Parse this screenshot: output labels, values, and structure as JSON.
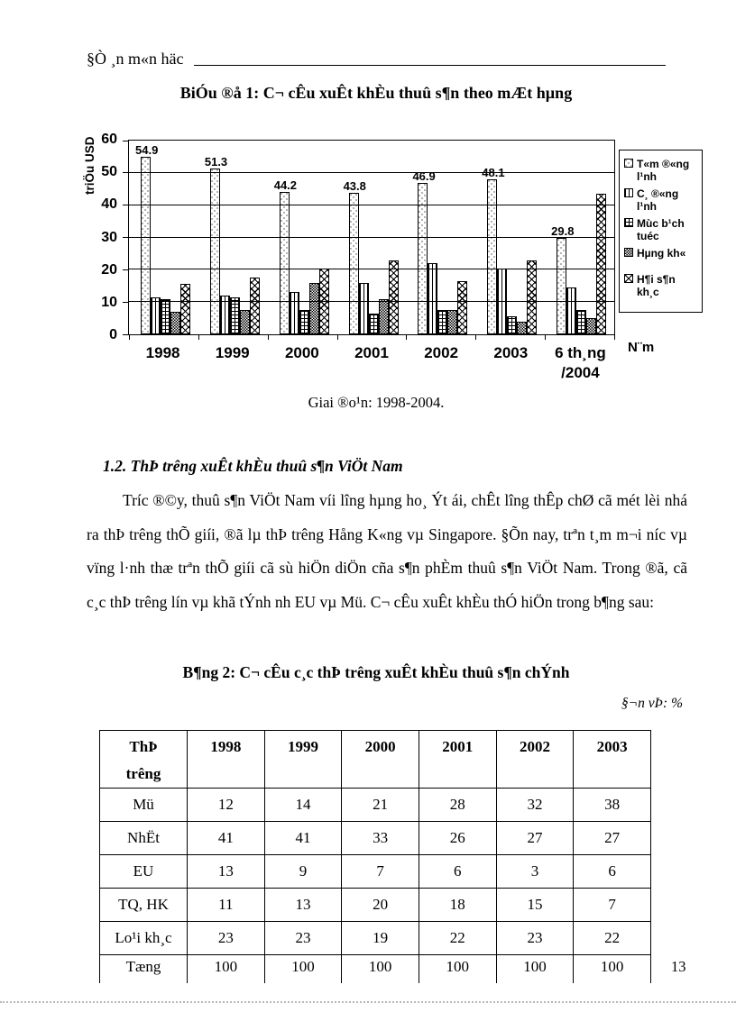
{
  "page": {
    "header_text": "§Ò ¸n m«n häc",
    "page_number": "13"
  },
  "chart": {
    "title": "BiÓu ®å 1: C¬ cÊu xuÊt khÈu thuû s¶n theo mÆt hµng",
    "caption": "Giai ®o¹n: 1998-2004.",
    "y_axis_label": "triÖu USD",
    "x_axis_title": "N¨m"
  },
  "chart_data": {
    "type": "bar",
    "title": "BiÓu ®å 1: C¬ cÊu xuÊt khÈu thuû s¶n theo mÆt hµng",
    "ylabel": "triÖu USD",
    "xlabel": "N¨m",
    "ylim": [
      0,
      60
    ],
    "yticks": [
      0,
      10,
      20,
      30,
      40,
      50,
      60
    ],
    "grid": true,
    "legend_position": "right",
    "categories": [
      "1998",
      "1999",
      "2000",
      "2001",
      "2002",
      "2003",
      "6 th¸ng\n/2004"
    ],
    "series": [
      {
        "name": "T«m ®«ng l¹nh",
        "values": [
          54.9,
          51.3,
          44.2,
          43.8,
          46.9,
          48.1,
          29.8
        ]
      },
      {
        "name": "C¸ ®«ng l¹nh",
        "values": [
          11.5,
          12,
          13,
          16,
          22,
          20.5,
          14.5
        ]
      },
      {
        "name": "Mùc b¹ch tuéc",
        "values": [
          11,
          11.5,
          7.5,
          6.5,
          7.5,
          5.5,
          7.5
        ]
      },
      {
        "name": "Hµng kh«",
        "values": [
          7,
          7.5,
          16,
          11,
          7.5,
          4,
          5
        ]
      },
      {
        "name": "H¶i s¶n kh¸c",
        "values": [
          15.5,
          17.5,
          20.5,
          23,
          16.5,
          23,
          43.5
        ]
      }
    ],
    "bar_labels": [
      "54.9",
      "51.3",
      "44.2",
      "43.8",
      "46.9",
      "48.1",
      "29.8"
    ]
  },
  "section": {
    "heading": "1.2. ThÞ trêng  xuÊt khÈu thuû s¶n ViÖt Nam",
    "paragraph": "Tríc ®©y, thuû s¶n ViÖt Nam víi lîng hµng ho¸ Ýt ái, chÊt lîng thÊp chØ cã mét lèi nhá ra thÞ trêng thÕ giíi, ®ã lµ thÞ trêng Hång K«ng vµ Singapore. §Õn nay, trªn t¸m m¬i níc vµ vïng l·nh thæ trªn thÕ giíi cã sù hiÖn diÖn cña s¶n phÈm thuû s¶n ViÖt Nam. Trong ®ã, cã c¸c thÞ trêng lín vµ khã tÝnh nh EU vµ Mü. C¬ cÊu xuÊt khÈu thÓ hiÖn trong b¶ng sau:"
  },
  "table": {
    "title": "B¶ng 2: C¬ cÊu c¸c thÞ trêng  xuÊt khÈu thuû s¶n chÝnh",
    "unit": "§¬n vÞ: %",
    "row_header": "ThÞ\ntrêng",
    "years": [
      "1998",
      "1999",
      "2000",
      "2001",
      "2002",
      "2003"
    ],
    "rows": [
      {
        "label": "Mü",
        "values": [
          "12",
          "14",
          "21",
          "28",
          "32",
          "38"
        ]
      },
      {
        "label": "NhËt",
        "values": [
          "41",
          "41",
          "33",
          "26",
          "27",
          "27"
        ]
      },
      {
        "label": "EU",
        "values": [
          "13",
          "9",
          "7",
          "6",
          "3",
          "6"
        ]
      },
      {
        "label": "TQ, HK",
        "values": [
          "11",
          "13",
          "20",
          "18",
          "15",
          "7"
        ]
      },
      {
        "label": "Lo¹i kh¸c",
        "values": [
          "23",
          "23",
          "19",
          "22",
          "23",
          "22"
        ]
      },
      {
        "label": "Tæng",
        "values": [
          "100",
          "100",
          "100",
          "100",
          "100",
          "100"
        ]
      }
    ]
  }
}
